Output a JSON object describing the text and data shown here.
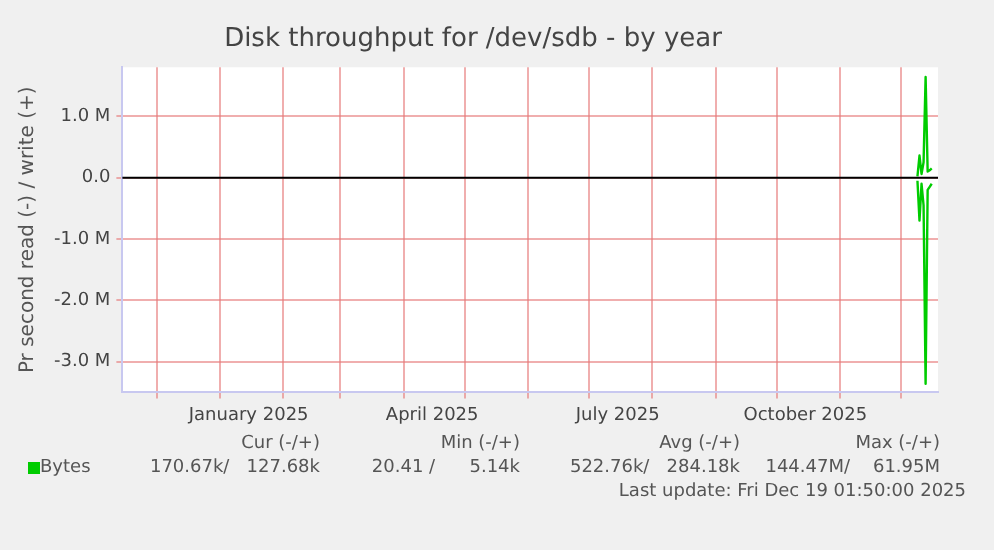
{
  "chart_data": {
    "type": "line",
    "title": "Disk throughput for /dev/sdb - by year",
    "ylabel": "Pr second read (-) / write (+)",
    "x": [
      "2025-12-09",
      "2025-12-10",
      "2025-12-11",
      "2025-12-12",
      "2025-12-13",
      "2025-12-14",
      "2025-12-15",
      "2025-12-16"
    ],
    "series": [
      {
        "name": "Bytes",
        "color": "#00cc00",
        "values": [
          20000,
          360000,
          60000,
          250000,
          1640000,
          100000,
          120000,
          150000
        ]
      },
      {
        "color": "#00cc00",
        "values": [
          -50000,
          -700000,
          -100000,
          -450000,
          -3360000,
          -200000,
          -150000,
          -100000
        ]
      }
    ],
    "xlim": [
      "2024-11-14T01:50",
      "2025-12-19T01:50"
    ],
    "xticks": [
      {
        "value": "2024-12-01",
        "label": null
      },
      {
        "value": "2025-01-01",
        "label": null
      },
      {
        "value": "2025-01-15",
        "label": "January 2025"
      },
      {
        "value": "2025-02-01",
        "label": null
      },
      {
        "value": "2025-03-01",
        "label": null
      },
      {
        "value": "2025-04-01",
        "label": null
      },
      {
        "value": "2025-04-15",
        "label": "April 2025"
      },
      {
        "value": "2025-05-01",
        "label": null
      },
      {
        "value": "2025-06-01",
        "label": null
      },
      {
        "value": "2025-07-01",
        "label": null
      },
      {
        "value": "2025-07-15",
        "label": "July 2025"
      },
      {
        "value": "2025-08-01",
        "label": null
      },
      {
        "value": "2025-09-01",
        "label": null
      },
      {
        "value": "2025-10-01",
        "label": null
      },
      {
        "value": "2025-10-15",
        "label": "October 2025"
      },
      {
        "value": "2025-11-01",
        "label": null
      },
      {
        "value": "2025-12-01",
        "label": null
      }
    ],
    "ylim": [
      -3500000,
      1800000
    ],
    "yticks": [
      {
        "value": -3000000,
        "label": "-3.0 M"
      },
      {
        "value": -2000000,
        "label": "-2.0 M"
      },
      {
        "value": -1000000,
        "label": "-1.0 M"
      },
      {
        "value": 0,
        "label": "0.0"
      },
      {
        "value": 1000000,
        "label": "1.0 M"
      }
    ],
    "ref_lines": [
      {
        "axis": "y",
        "value": 0,
        "color": "#000000"
      }
    ],
    "grid": true,
    "legend": "bottom left",
    "marker": "none",
    "line_style": "solid",
    "annotations": [
      "Cur (-/+)",
      "Min (-/+)",
      "Avg (-/+)",
      "Max (-/+)",
      "170.67k/   127.68k",
      "20.41 /      5.14k",
      "522.76k/   284.18k",
      "144.47M/    61.95M",
      "Last update: Fri Dec 19 01:50:00 2025"
    ]
  }
}
